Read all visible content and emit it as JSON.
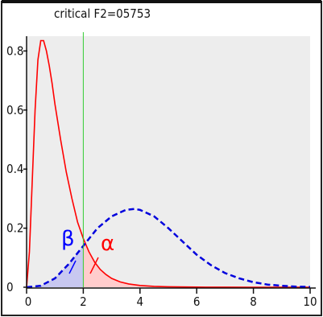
{
  "chart_data": {
    "type": "line",
    "title": "critical F2=05753",
    "xlim": [
      0,
      10
    ],
    "ylim": [
      0,
      0.85
    ],
    "x_ticks": [
      0,
      2,
      4,
      6,
      8,
      10
    ],
    "y_ticks": [
      0,
      0.2,
      0.4,
      0.6,
      0.8
    ],
    "x_tick_labels": [
      "0",
      "2",
      "4",
      "6",
      "8",
      "10"
    ],
    "y_tick_labels": [
      "0",
      "0.2",
      "0.4",
      "0.6",
      "0.8"
    ],
    "critical_value": 2.0,
    "series": [
      {
        "color": "#ff0000",
        "style": "solid",
        "x": [
          0,
          0.1,
          0.2,
          0.3,
          0.4,
          0.5,
          0.6,
          0.7,
          0.8,
          0.9,
          1.0,
          1.2,
          1.4,
          1.6,
          1.8,
          2.0,
          2.2,
          2.4,
          2.6,
          2.8,
          3.0,
          3.3,
          3.6,
          4.0,
          4.5,
          5.0,
          6.0,
          7.0,
          8.0,
          10.0
        ],
        "y": [
          0,
          0.12,
          0.36,
          0.6,
          0.77,
          0.835,
          0.835,
          0.8,
          0.75,
          0.69,
          0.62,
          0.5,
          0.39,
          0.3,
          0.22,
          0.165,
          0.12,
          0.085,
          0.06,
          0.043,
          0.03,
          0.018,
          0.011,
          0.006,
          0.003,
          0.0015,
          0.0004,
          0.0001,
          3e-05,
          0
        ]
      },
      {
        "color": "#0000dd",
        "style": "dashed",
        "x": [
          0,
          0.5,
          1.0,
          1.5,
          2.0,
          2.5,
          3.0,
          3.5,
          3.8,
          4.0,
          4.5,
          5.0,
          5.5,
          6.0,
          6.5,
          7.0,
          7.5,
          8.0,
          8.5,
          9.0,
          9.5,
          10.0
        ],
        "y": [
          0,
          0.005,
          0.03,
          0.08,
          0.14,
          0.2,
          0.24,
          0.262,
          0.265,
          0.262,
          0.24,
          0.2,
          0.155,
          0.11,
          0.075,
          0.048,
          0.03,
          0.017,
          0.009,
          0.005,
          0.002,
          0.001
        ]
      }
    ],
    "shaded_regions": [
      {
        "label": "β",
        "color": "#0000ff",
        "fill": "#c8c8f0",
        "x_range": [
          0,
          2.0
        ],
        "under_series": 1
      },
      {
        "label": "α",
        "color": "#ff0000",
        "fill": "#ffcccc",
        "x_range": [
          2.0,
          10.0
        ],
        "under_series": 0
      }
    ],
    "grid": false,
    "legend": "none"
  }
}
